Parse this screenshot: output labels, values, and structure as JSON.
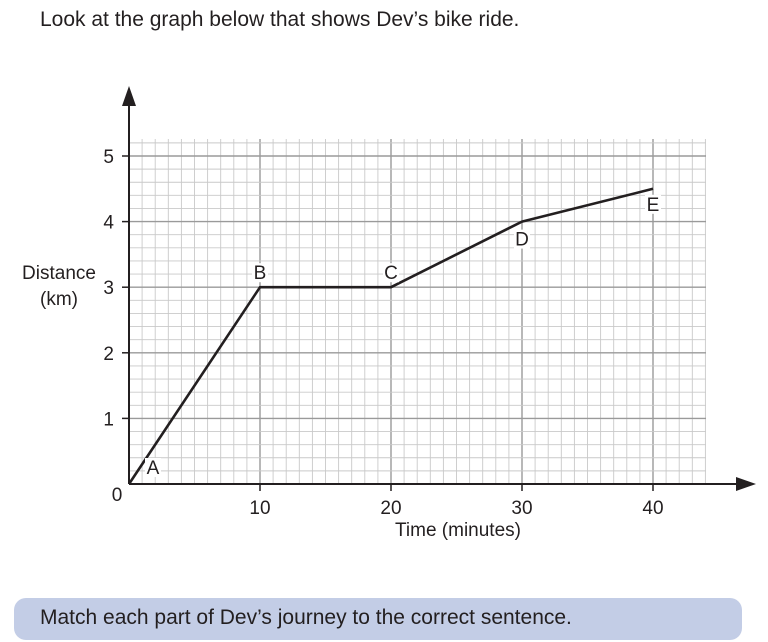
{
  "intro_text": "Look at the graph below that shows Dev’s bike ride.",
  "instruction_text": "Match each part of Dev’s journey to the correct sentence.",
  "colors": {
    "grid_minor": "#c9c9c9",
    "grid_major": "#9a9a9a",
    "line": "#231f20",
    "instruction_bg": "#c3cde6"
  },
  "chart_data": {
    "type": "line",
    "xlabel": "Time (minutes)",
    "ylabel_lines": [
      "Distance",
      "(km)"
    ],
    "xlim": [
      0,
      44
    ],
    "ylim": [
      0,
      5.25
    ],
    "x_ticks": [
      10,
      20,
      30,
      40
    ],
    "y_ticks": [
      1,
      2,
      3,
      4,
      5
    ],
    "origin_label": "0",
    "grid": true,
    "x_minor_step": 1,
    "y_minor_step": 0.2,
    "points": [
      {
        "label": "A",
        "x": 0,
        "y": 0
      },
      {
        "label": "B",
        "x": 10,
        "y": 3
      },
      {
        "label": "C",
        "x": 20,
        "y": 3
      },
      {
        "label": "D",
        "x": 30,
        "y": 4
      },
      {
        "label": "E",
        "x": 40,
        "y": 4.5
      }
    ]
  }
}
